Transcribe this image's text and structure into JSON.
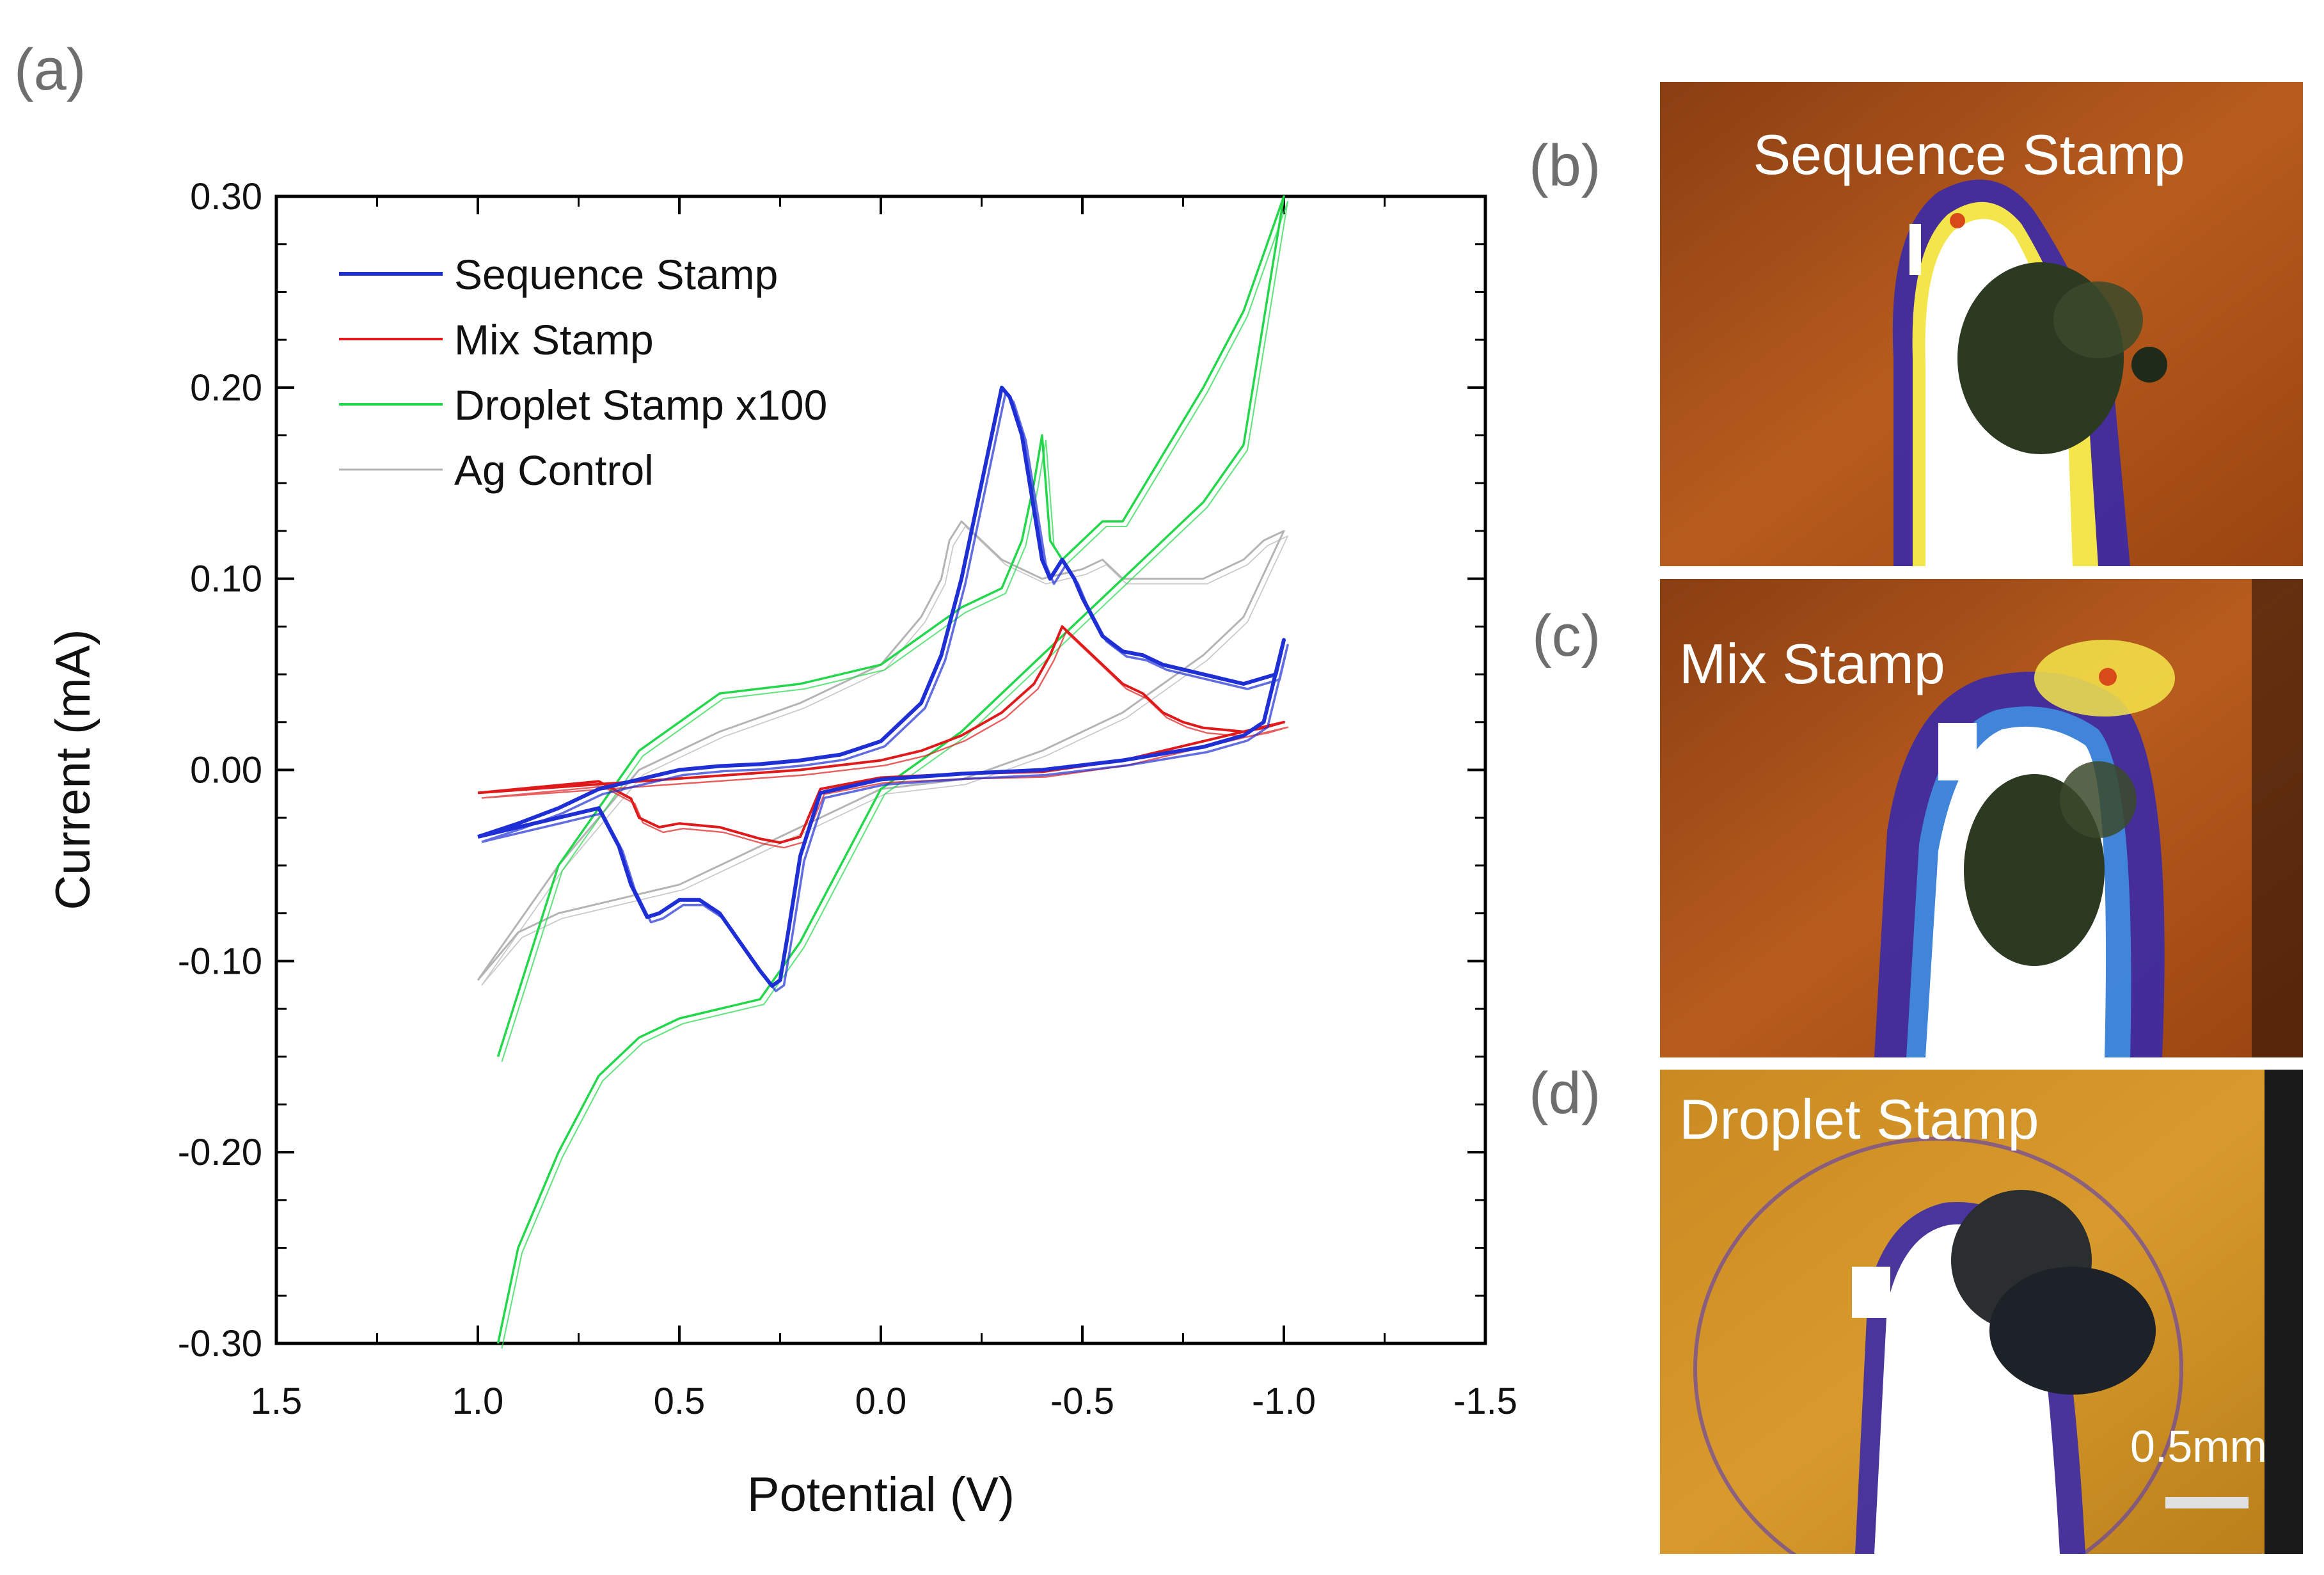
{
  "panel_labels": {
    "a": "(a)",
    "b": "(b)",
    "c": "(c)",
    "d": "(d)"
  },
  "chart_data": {
    "type": "line",
    "title": "",
    "xlabel": "Potential (V)",
    "ylabel": "Current (mA)",
    "xlim": [
      1.5,
      -1.5
    ],
    "ylim": [
      -0.3,
      0.3
    ],
    "x_ticks": [
      1.5,
      1.0,
      0.5,
      0.0,
      -0.5,
      -1.0,
      -1.5
    ],
    "x_tick_labels": [
      "1.5",
      "1.0",
      "0.5",
      "0.0",
      "-0.5",
      "-1.0",
      "-1.5"
    ],
    "y_ticks": [
      0.3,
      0.2,
      0.1,
      0.0,
      -0.1,
      -0.2,
      -0.3
    ],
    "y_tick_labels": [
      "0.30",
      "0.20",
      "0.10",
      "0.00",
      "-0.10",
      "-0.20",
      "-0.30"
    ],
    "grid": false,
    "legend_position": "top-left",
    "series": [
      {
        "name": "Sequence Stamp",
        "color": "#1f2fd6",
        "x": [
          1.0,
          0.9,
          0.8,
          0.7,
          0.65,
          0.62,
          0.58,
          0.55,
          0.5,
          0.45,
          0.4,
          0.35,
          0.3,
          0.27,
          0.25,
          0.23,
          0.2,
          0.15,
          0.0,
          -0.2,
          -0.4,
          -0.6,
          -0.8,
          -0.9,
          -0.95,
          -1.0,
          -0.98,
          -0.9,
          -0.8,
          -0.7,
          -0.65,
          -0.6,
          -0.55,
          -0.5,
          -0.48,
          -0.45,
          -0.42,
          -0.4,
          -0.35,
          -0.32,
          -0.3,
          -0.25,
          -0.2,
          -0.15,
          -0.1,
          0.0,
          0.1,
          0.2,
          0.3,
          0.4,
          0.5,
          0.6,
          0.7,
          0.8,
          0.9,
          1.0
        ],
        "y": [
          -0.035,
          -0.03,
          -0.025,
          -0.02,
          -0.04,
          -0.06,
          -0.077,
          -0.075,
          -0.068,
          -0.068,
          -0.075,
          -0.09,
          -0.105,
          -0.113,
          -0.11,
          -0.085,
          -0.045,
          -0.012,
          -0.005,
          -0.002,
          0.0,
          0.005,
          0.012,
          0.018,
          0.025,
          0.068,
          0.05,
          0.045,
          0.05,
          0.055,
          0.06,
          0.062,
          0.07,
          0.09,
          0.1,
          0.11,
          0.1,
          0.11,
          0.175,
          0.195,
          0.2,
          0.15,
          0.1,
          0.06,
          0.035,
          0.015,
          0.008,
          0.005,
          0.003,
          0.002,
          0.0,
          -0.005,
          -0.01,
          -0.02,
          -0.028,
          -0.035
        ]
      },
      {
        "name": "Mix Stamp",
        "color": "#e01a1a",
        "x": [
          1.0,
          0.9,
          0.8,
          0.7,
          0.62,
          0.6,
          0.55,
          0.5,
          0.4,
          0.3,
          0.25,
          0.2,
          0.15,
          0.0,
          -0.2,
          -0.4,
          -0.6,
          -0.8,
          -0.9,
          -1.0,
          -0.95,
          -0.9,
          -0.8,
          -0.75,
          -0.7,
          -0.65,
          -0.6,
          -0.55,
          -0.5,
          -0.45,
          -0.42,
          -0.38,
          -0.3,
          -0.2,
          -0.1,
          0.0,
          0.2,
          0.4,
          0.6,
          0.8,
          1.0
        ],
        "y": [
          -0.012,
          -0.01,
          -0.008,
          -0.006,
          -0.015,
          -0.025,
          -0.03,
          -0.028,
          -0.03,
          -0.036,
          -0.038,
          -0.035,
          -0.01,
          -0.004,
          -0.002,
          -0.001,
          0.005,
          0.015,
          0.02,
          0.025,
          0.022,
          0.02,
          0.022,
          0.025,
          0.03,
          0.04,
          0.045,
          0.055,
          0.065,
          0.075,
          0.06,
          0.045,
          0.03,
          0.018,
          0.01,
          0.005,
          0.0,
          -0.003,
          -0.006,
          -0.009,
          -0.012
        ]
      },
      {
        "name": "Droplet Stamp x100",
        "color": "#22d84a",
        "x": [
          0.95,
          0.9,
          0.8,
          0.7,
          0.6,
          0.5,
          0.4,
          0.3,
          0.2,
          0.1,
          0.0,
          -0.2,
          -0.4,
          -0.6,
          -0.8,
          -0.9,
          -1.0,
          -0.95,
          -0.9,
          -0.8,
          -0.7,
          -0.6,
          -0.55,
          -0.5,
          -0.45,
          -0.42,
          -0.4,
          -0.38,
          -0.35,
          -0.3,
          -0.25,
          -0.2,
          -0.1,
          0.0,
          0.2,
          0.4,
          0.6,
          0.8,
          0.95
        ],
        "y": [
          -0.3,
          -0.25,
          -0.2,
          -0.16,
          -0.14,
          -0.13,
          -0.125,
          -0.12,
          -0.09,
          -0.05,
          -0.01,
          0.02,
          0.06,
          0.1,
          0.14,
          0.17,
          0.3,
          0.27,
          0.24,
          0.2,
          0.165,
          0.13,
          0.13,
          0.12,
          0.11,
          0.12,
          0.175,
          0.15,
          0.12,
          0.095,
          0.09,
          0.085,
          0.07,
          0.055,
          0.045,
          0.04,
          0.01,
          -0.05,
          -0.15
        ]
      },
      {
        "name": "Ag Control",
        "color": "#b4b4b4",
        "x": [
          1.0,
          0.9,
          0.8,
          0.7,
          0.6,
          0.5,
          0.4,
          0.3,
          0.2,
          0.1,
          0.0,
          -0.2,
          -0.4,
          -0.6,
          -0.8,
          -0.9,
          -1.0,
          -0.95,
          -0.9,
          -0.8,
          -0.7,
          -0.6,
          -0.55,
          -0.5,
          -0.4,
          -0.3,
          -0.2,
          -0.17,
          -0.15,
          -0.1,
          0.0,
          0.2,
          0.4,
          0.6,
          0.8,
          1.0
        ],
        "y": [
          -0.11,
          -0.085,
          -0.075,
          -0.07,
          -0.065,
          -0.06,
          -0.05,
          -0.04,
          -0.03,
          -0.02,
          -0.01,
          -0.005,
          0.01,
          0.03,
          0.06,
          0.08,
          0.125,
          0.12,
          0.11,
          0.1,
          0.1,
          0.1,
          0.11,
          0.105,
          0.1,
          0.11,
          0.13,
          0.12,
          0.1,
          0.08,
          0.055,
          0.035,
          0.02,
          0.0,
          -0.05,
          -0.11
        ]
      }
    ]
  },
  "photos": [
    {
      "label": "Sequence Stamp"
    },
    {
      "label": "Mix Stamp"
    },
    {
      "label": "Droplet Stamp",
      "scale_bar": "0.5mm"
    }
  ]
}
